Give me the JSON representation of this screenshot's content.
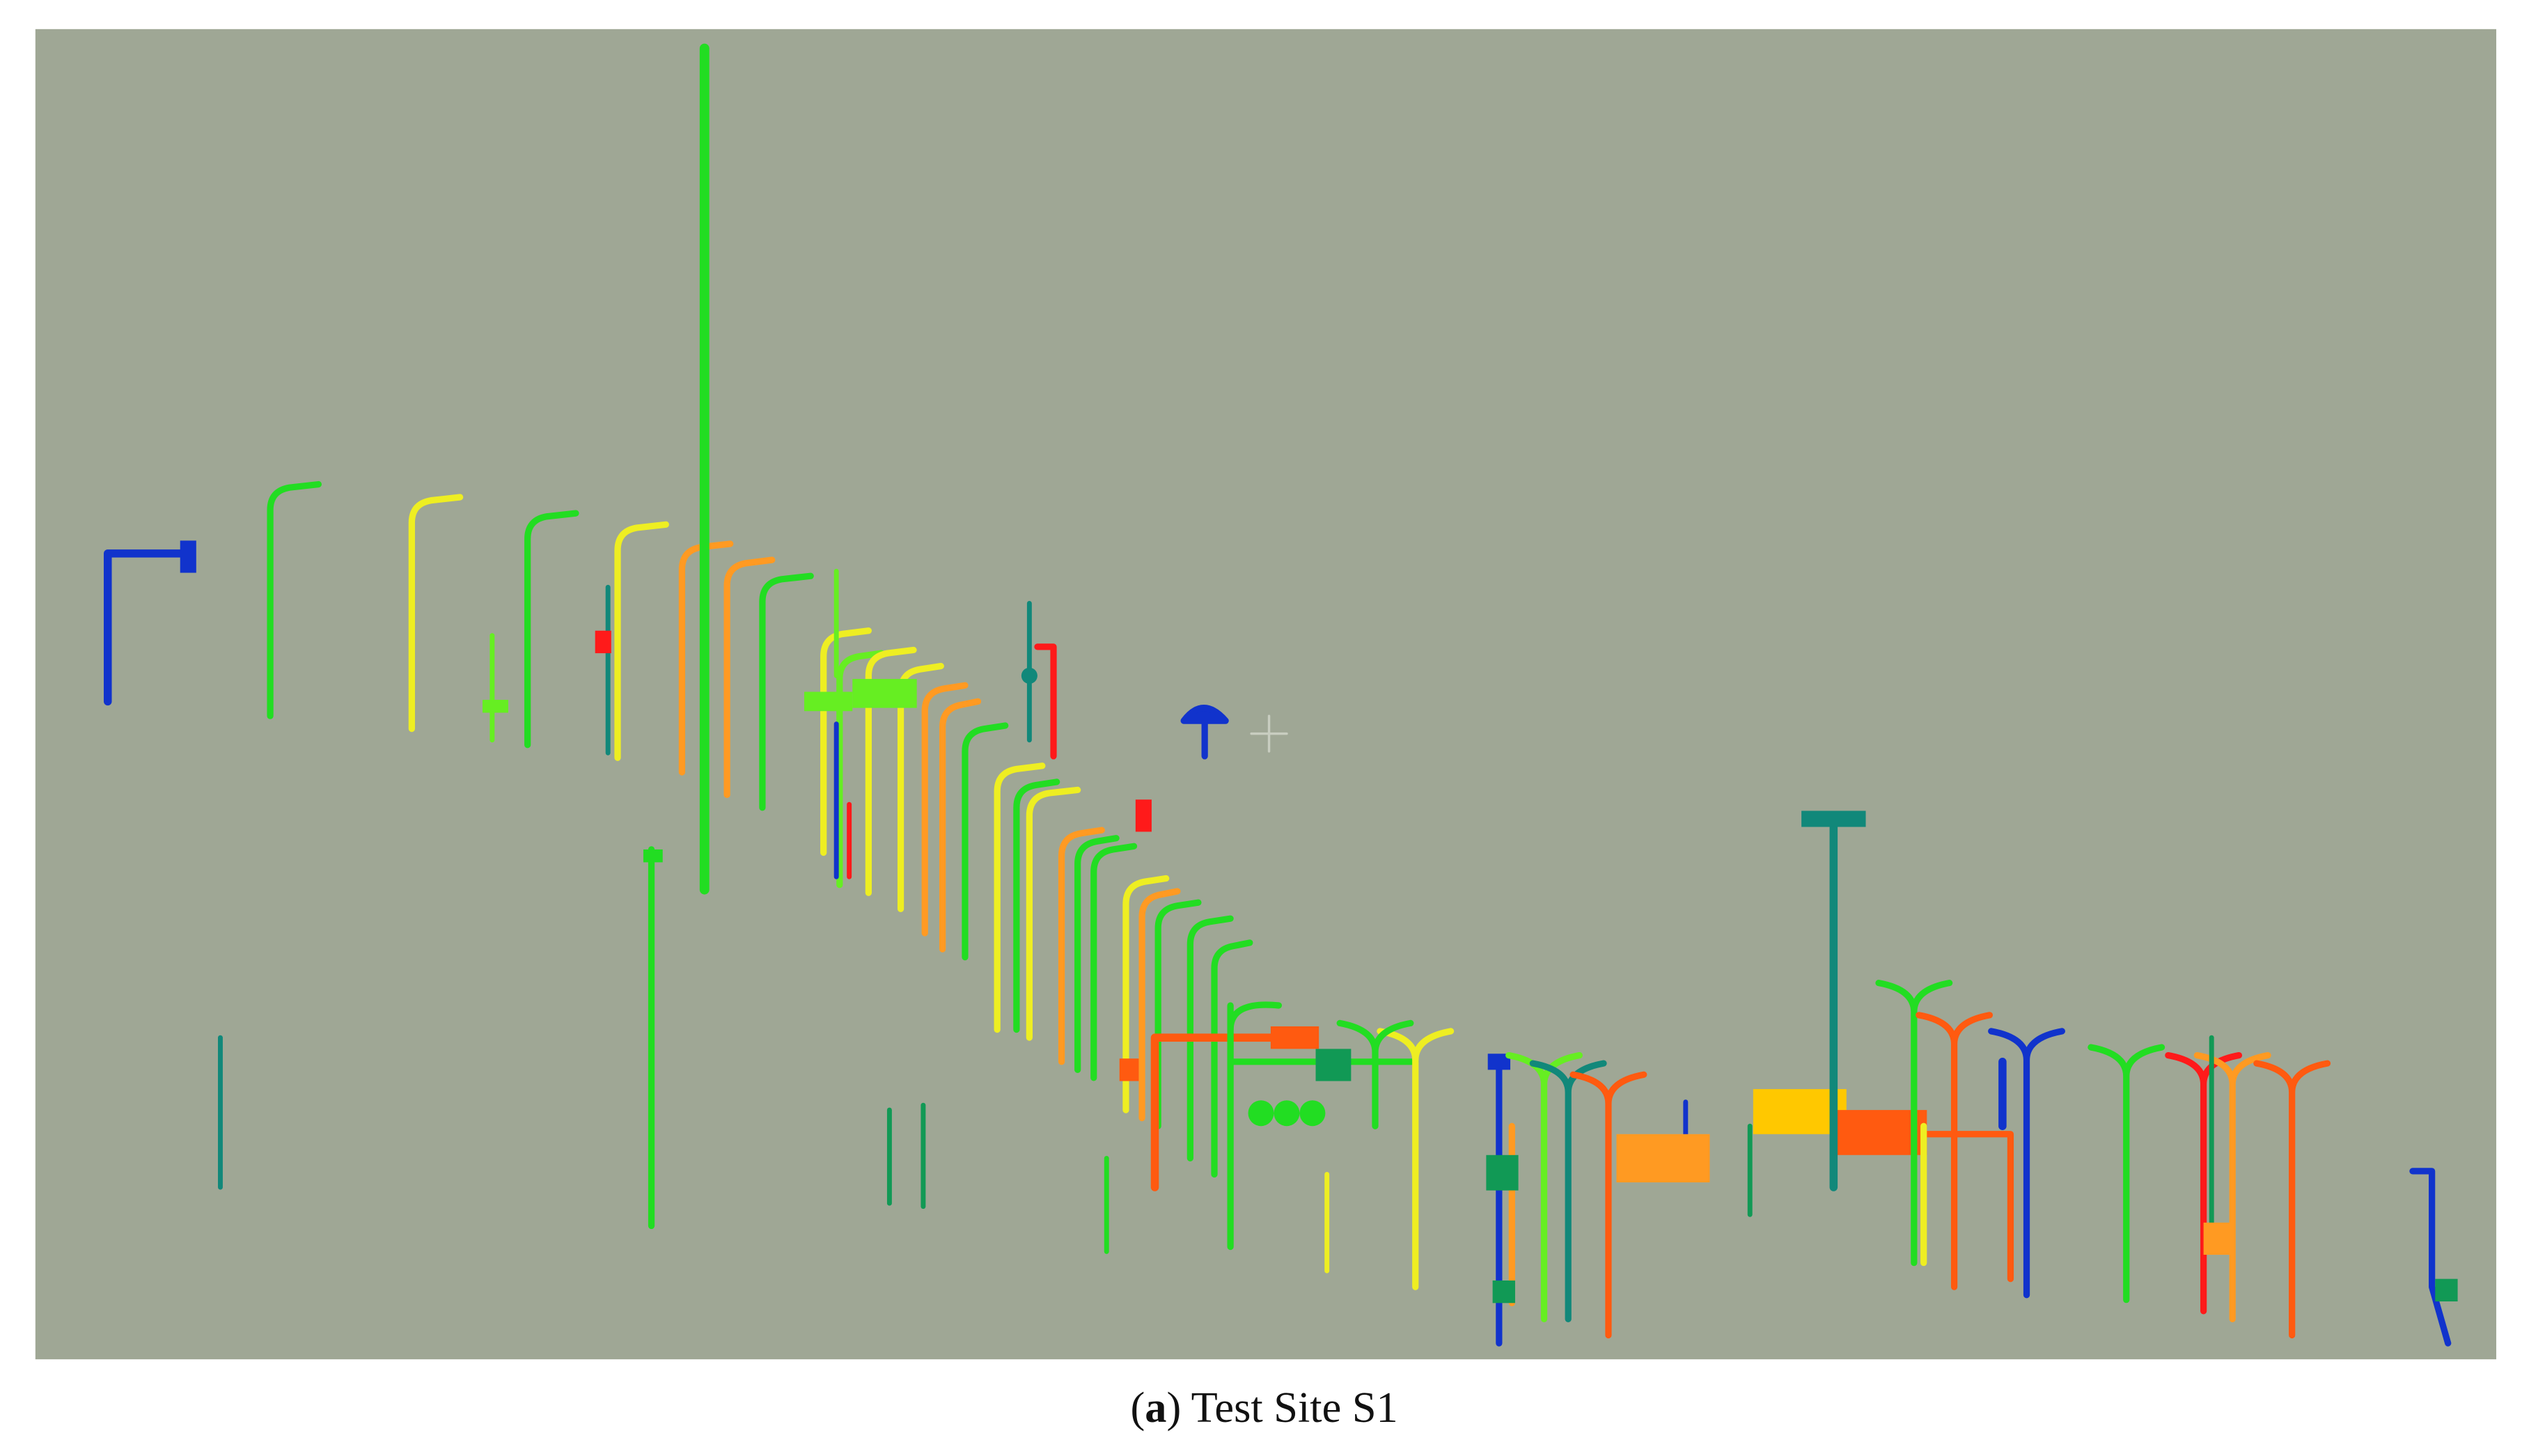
{
  "caption": [
    "(",
    "a",
    ") Test Site S1"
  ]
}
